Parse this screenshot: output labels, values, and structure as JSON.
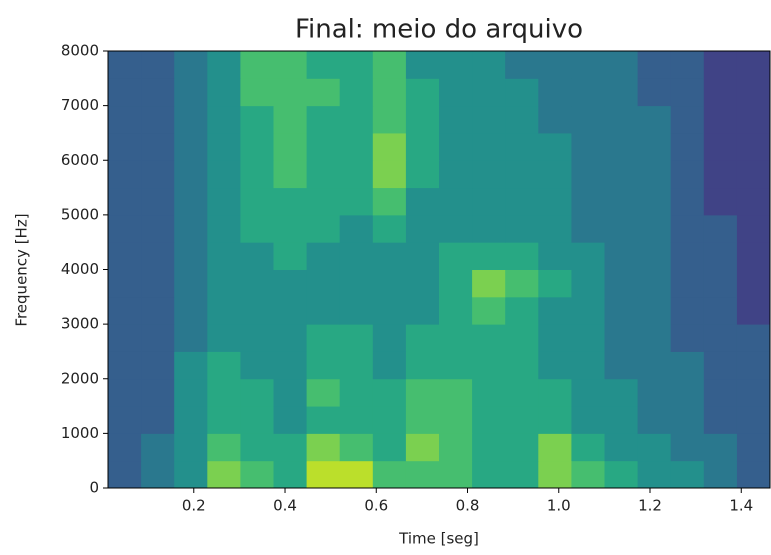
{
  "chart_data": {
    "type": "heatmap",
    "title": "Final: meio do arquivo",
    "x_label": "Time [seg]",
    "y_label": "Frequency [Hz]",
    "colormap": "viridis",
    "zlim": [
      0,
      10
    ],
    "xlim": [
      0.012,
      1.463
    ],
    "ylim": [
      0,
      8000
    ],
    "xticks": [
      0.2,
      0.4,
      0.6,
      0.8,
      {
        "value": 1,
        "label": "1.0"
      },
      1.2,
      1.4
    ],
    "yticks": [
      0,
      1000,
      2000,
      3000,
      4000,
      5000,
      6000,
      7000,
      8000
    ],
    "z": [
      [
        3,
        4,
        5,
        8,
        7,
        6,
        9,
        9,
        7,
        7,
        7,
        6,
        6,
        8,
        7,
        6,
        5,
        5,
        4,
        3
      ],
      [
        3,
        4,
        5,
        7,
        6,
        6,
        8,
        7,
        6,
        8,
        7,
        6,
        6,
        8,
        6,
        5,
        5,
        4,
        4,
        3
      ],
      [
        3,
        3,
        5,
        6,
        6,
        5,
        6,
        6,
        6,
        7,
        7,
        6,
        6,
        6,
        5,
        5,
        4,
        4,
        3,
        3
      ],
      [
        3,
        3,
        5,
        6,
        6,
        5,
        7,
        6,
        6,
        7,
        7,
        6,
        6,
        6,
        5,
        5,
        4,
        4,
        3,
        3
      ],
      [
        3,
        3,
        5,
        6,
        5,
        5,
        6,
        6,
        5,
        6,
        6,
        6,
        6,
        5,
        5,
        4,
        4,
        4,
        3,
        3
      ],
      [
        3,
        3,
        4,
        5,
        5,
        5,
        6,
        6,
        5,
        6,
        6,
        6,
        6,
        5,
        5,
        4,
        4,
        3,
        3,
        3
      ],
      [
        3,
        3,
        4,
        5,
        5,
        5,
        5,
        5,
        5,
        5,
        6,
        7,
        6,
        5,
        5,
        4,
        4,
        3,
        3,
        2
      ],
      [
        3,
        3,
        4,
        5,
        5,
        5,
        5,
        5,
        5,
        5,
        6,
        8,
        7,
        6,
        5,
        4,
        4,
        3,
        3,
        2
      ],
      [
        3,
        3,
        4,
        5,
        5,
        6,
        5,
        5,
        5,
        5,
        6,
        6,
        6,
        5,
        5,
        4,
        4,
        3,
        3,
        2
      ],
      [
        3,
        3,
        4,
        5,
        6,
        6,
        6,
        5,
        6,
        5,
        5,
        5,
        5,
        5,
        4,
        4,
        4,
        3,
        3,
        2
      ],
      [
        3,
        3,
        4,
        5,
        6,
        6,
        6,
        6,
        7,
        5,
        5,
        5,
        5,
        5,
        4,
        4,
        4,
        3,
        2,
        2
      ],
      [
        3,
        3,
        4,
        5,
        6,
        7,
        6,
        6,
        8,
        6,
        5,
        5,
        5,
        5,
        4,
        4,
        4,
        3,
        2,
        2
      ],
      [
        3,
        3,
        4,
        5,
        6,
        7,
        6,
        6,
        8,
        6,
        5,
        5,
        5,
        5,
        4,
        4,
        4,
        3,
        2,
        2
      ],
      [
        3,
        3,
        4,
        5,
        6,
        7,
        6,
        6,
        7,
        6,
        5,
        5,
        5,
        4,
        4,
        4,
        4,
        3,
        2,
        2
      ],
      [
        3,
        3,
        4,
        5,
        7,
        7,
        7,
        6,
        7,
        6,
        5,
        5,
        5,
        4,
        4,
        4,
        3,
        3,
        2,
        2
      ],
      [
        3,
        3,
        4,
        5,
        7,
        7,
        6,
        6,
        7,
        5,
        5,
        5,
        4,
        4,
        4,
        4,
        3,
        3,
        2,
        2
      ]
    ]
  }
}
